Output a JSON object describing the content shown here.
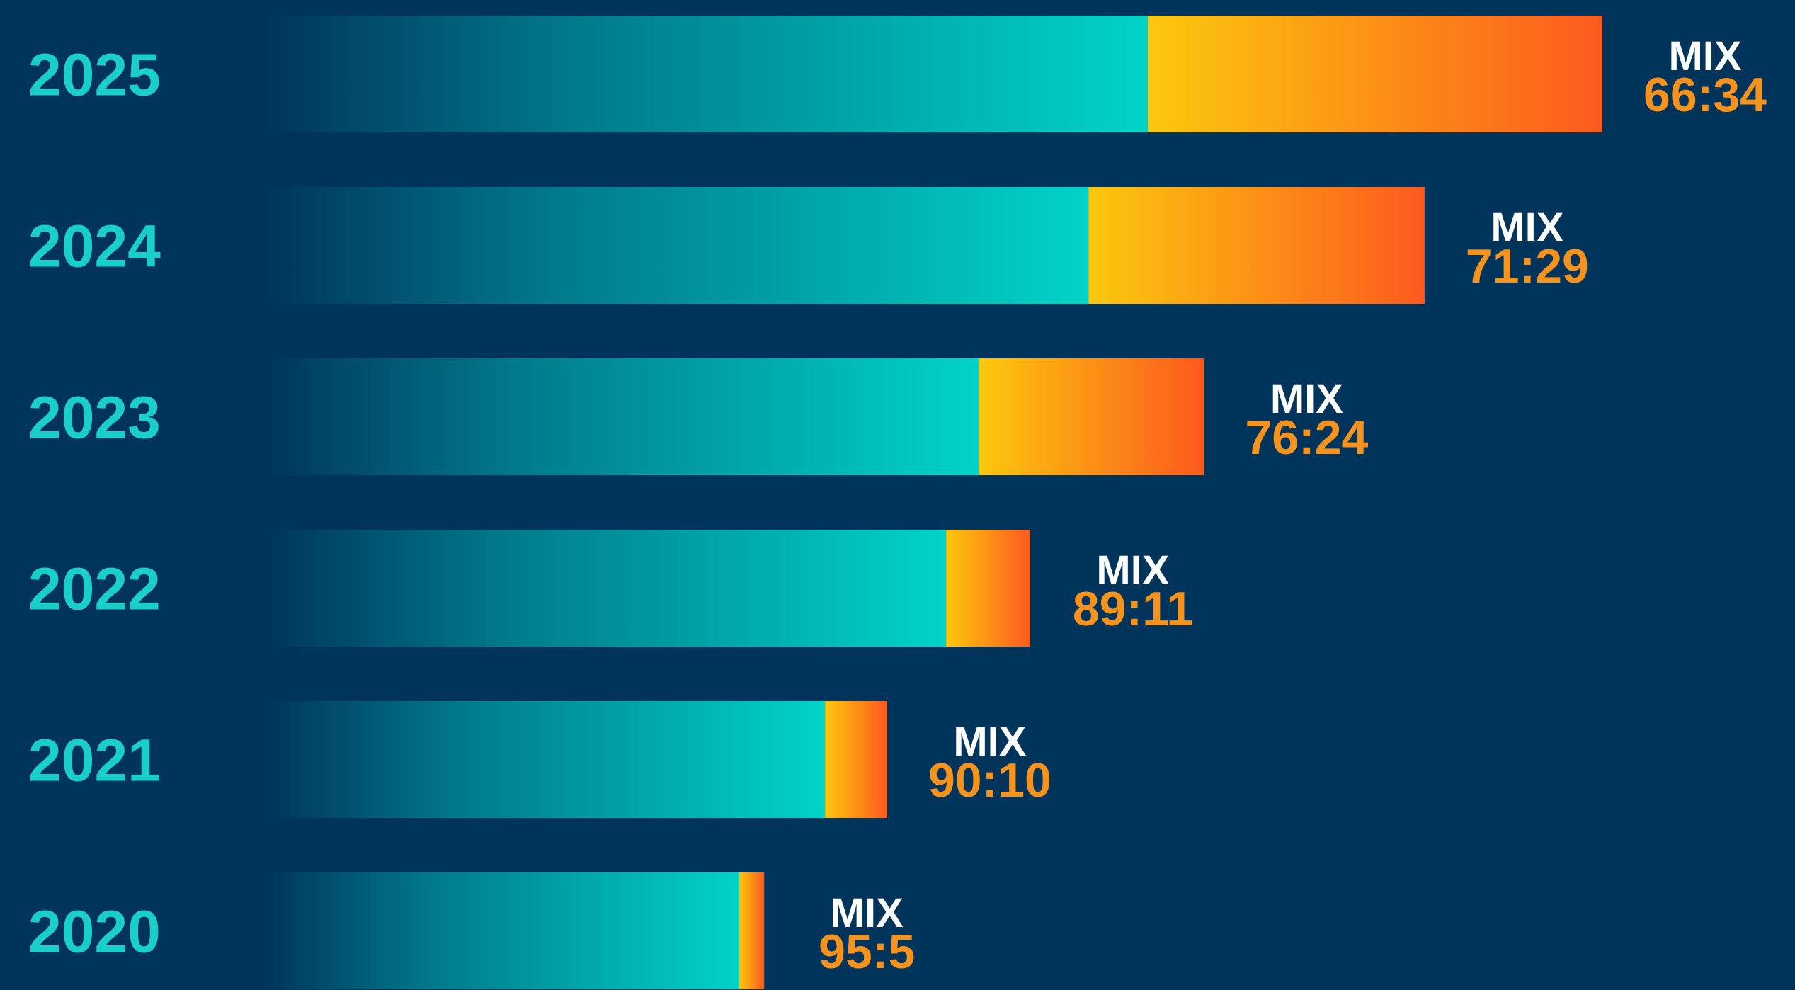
{
  "colors": {
    "background": "#00345b",
    "year_label": "#19cfc7",
    "primary_segment_start": "#00345b",
    "primary_segment_end": "#00d3c8",
    "secondary_segment_start": "#fbc80d",
    "secondary_segment_end": "#fd5a1e",
    "mix_word": "#ffffff",
    "mix_ratio": "#f6931e"
  },
  "chart_data": {
    "type": "bar",
    "orientation": "horizontal",
    "stacked": true,
    "title": "",
    "xlabel": "",
    "ylabel": "",
    "grid": false,
    "legend": "none",
    "categories": [
      "2025",
      "2024",
      "2023",
      "2022",
      "2021",
      "2020"
    ],
    "series": [
      {
        "values": [
          66,
          71,
          76,
          89,
          90,
          95
        ]
      },
      {
        "values": [
          34,
          29,
          24,
          11,
          10,
          5
        ]
      }
    ],
    "bar_length_relative": [
      1.0,
      0.867,
      0.702,
      0.572,
      0.465,
      0.373
    ],
    "annotations": [
      {
        "category": "2025",
        "label": "MIX",
        "ratio": "66:34"
      },
      {
        "category": "2024",
        "label": "MIX",
        "ratio": "71:29"
      },
      {
        "category": "2023",
        "label": "MIX",
        "ratio": "76:24"
      },
      {
        "category": "2022",
        "label": "MIX",
        "ratio": "89:11"
      },
      {
        "category": "2021",
        "label": "MIX",
        "ratio": "90:10"
      },
      {
        "category": "2020",
        "label": "MIX",
        "ratio": "95:5"
      }
    ]
  }
}
